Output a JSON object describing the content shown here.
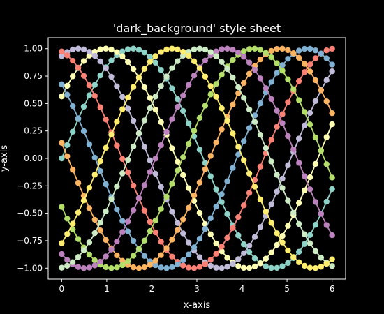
{
  "colors": {
    "background": "#000000",
    "foreground": "#ffffff",
    "palette": [
      "#8dd3c7",
      "#feffb3",
      "#bfbbd9",
      "#fa8174",
      "#81b1d2",
      "#fdb462",
      "#b3de69",
      "#bc82bd",
      "#ccebc4",
      "#ffed6f"
    ]
  },
  "chart_data": {
    "type": "line",
    "title": "'dark_background' style sheet",
    "xlabel": "x-axis",
    "ylabel": "y-axis",
    "xlim": [
      -0.3,
      6.3
    ],
    "ylim": [
      -1.1,
      1.1
    ],
    "xticks": [
      0,
      1,
      2,
      3,
      4,
      5,
      6
    ],
    "yticks": [
      -1.0,
      -0.75,
      -0.5,
      -0.25,
      0.0,
      0.25,
      0.5,
      0.75,
      1.0
    ],
    "ytick_labels": [
      "−1.00",
      "−0.75",
      "−0.50",
      "−0.25",
      "0.00",
      "0.25",
      "0.50",
      "0.75",
      "1.00"
    ],
    "grid": false,
    "legend": "none",
    "marker": "circle",
    "x": [
      0,
      0.1224,
      0.2449,
      0.3673,
      0.4898,
      0.6122,
      0.7347,
      0.8571,
      0.9796,
      1.102,
      1.2245,
      1.3469,
      1.4694,
      1.5918,
      1.7143,
      1.8367,
      1.9592,
      2.0816,
      2.2041,
      2.3265,
      2.449,
      2.5714,
      2.6939,
      2.8163,
      2.9388,
      3.0612,
      3.1837,
      3.3061,
      3.4286,
      3.551,
      3.6735,
      3.7959,
      3.9184,
      4.0408,
      4.1633,
      4.2857,
      4.4082,
      4.5306,
      4.6531,
      4.7755,
      4.898,
      5.0204,
      5.1429,
      5.2653,
      5.3878,
      5.5102,
      5.6327,
      5.7551,
      5.8776,
      6.0
    ],
    "series": [
      {
        "name": "",
        "function": "sin",
        "phase": 0.0
      },
      {
        "name": "",
        "function": "sin",
        "phase": 0.6
      },
      {
        "name": "",
        "function": "sin",
        "phase": 1.2
      },
      {
        "name": "",
        "function": "sin",
        "phase": 1.8
      },
      {
        "name": "",
        "function": "sin",
        "phase": 2.4
      },
      {
        "name": "",
        "function": "sin",
        "phase": 3.0
      },
      {
        "name": "",
        "function": "sin",
        "phase": 3.6
      },
      {
        "name": "",
        "function": "sin",
        "phase": 4.2
      },
      {
        "name": "",
        "function": "sin",
        "phase": 4.8
      },
      {
        "name": "",
        "function": "sin",
        "phase": 5.4
      }
    ]
  }
}
